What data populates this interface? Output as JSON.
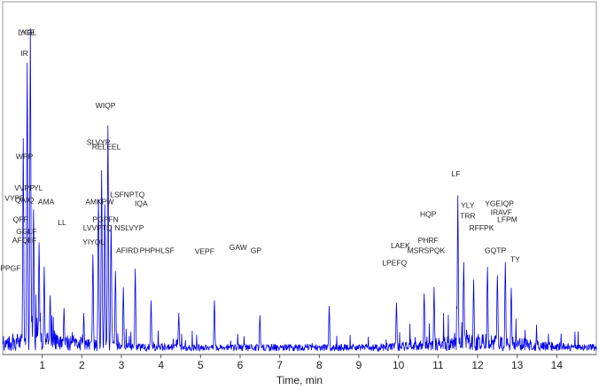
{
  "chart_data": {
    "type": "line",
    "title": "",
    "xlabel": "Time, min",
    "ylabel": "",
    "xlim": [
      0,
      15
    ],
    "ylim": [
      0,
      1
    ],
    "grid": false,
    "x_ticks": [
      "1",
      "2",
      "3",
      "4",
      "5",
      "6",
      "7",
      "8",
      "9",
      "10",
      "11",
      "12",
      "13",
      "14"
    ],
    "series_color": "#0000ee",
    "major_peaks": [
      {
        "x": 0.52,
        "y": 0.62
      },
      {
        "x": 0.62,
        "y": 0.86
      },
      {
        "x": 0.7,
        "y": 0.97
      },
      {
        "x": 0.78,
        "y": 0.44
      },
      {
        "x": 0.92,
        "y": 0.34
      },
      {
        "x": 1.05,
        "y": 0.26
      },
      {
        "x": 1.2,
        "y": 0.18
      },
      {
        "x": 1.55,
        "y": 0.14
      },
      {
        "x": 2.05,
        "y": 0.12
      },
      {
        "x": 2.28,
        "y": 0.3
      },
      {
        "x": 2.42,
        "y": 0.48
      },
      {
        "x": 2.5,
        "y": 0.55
      },
      {
        "x": 2.58,
        "y": 0.45
      },
      {
        "x": 2.66,
        "y": 0.68
      },
      {
        "x": 2.74,
        "y": 0.4
      },
      {
        "x": 2.85,
        "y": 0.25
      },
      {
        "x": 3.05,
        "y": 0.2
      },
      {
        "x": 3.35,
        "y": 0.26
      },
      {
        "x": 3.75,
        "y": 0.16
      },
      {
        "x": 4.45,
        "y": 0.12
      },
      {
        "x": 5.35,
        "y": 0.16
      },
      {
        "x": 6.5,
        "y": 0.12
      },
      {
        "x": 8.25,
        "y": 0.14
      },
      {
        "x": 9.95,
        "y": 0.16
      },
      {
        "x": 10.65,
        "y": 0.19
      },
      {
        "x": 10.9,
        "y": 0.2
      },
      {
        "x": 11.5,
        "y": 0.46
      },
      {
        "x": 11.65,
        "y": 0.28
      },
      {
        "x": 11.9,
        "y": 0.22
      },
      {
        "x": 12.25,
        "y": 0.26
      },
      {
        "x": 12.5,
        "y": 0.24
      },
      {
        "x": 12.7,
        "y": 0.28
      },
      {
        "x": 12.85,
        "y": 0.2
      }
    ],
    "peak_labels": [
      {
        "text": "YGE",
        "x": 0.62,
        "y": 0.915
      },
      {
        "text": "LYGL",
        "x": 0.62,
        "y": 0.915
      },
      {
        "text": "IR",
        "x": 0.55,
        "y": 0.855
      },
      {
        "text": "WIQP",
        "x": 2.6,
        "y": 0.705
      },
      {
        "text": "SLVYP",
        "x": 2.42,
        "y": 0.6
      },
      {
        "text": "RELEEL",
        "x": 2.62,
        "y": 0.587
      },
      {
        "text": "WPP",
        "x": 0.55,
        "y": 0.56
      },
      {
        "text": "VVPP",
        "x": 0.55,
        "y": 0.47
      },
      {
        "text": "YL",
        "x": 0.9,
        "y": 0.47
      },
      {
        "text": "LF",
        "x": 11.45,
        "y": 0.51
      },
      {
        "text": "VYPF",
        "x": 0.3,
        "y": 0.44
      },
      {
        "text": "QAIQ",
        "x": 0.55,
        "y": 0.435
      },
      {
        "text": "AMA",
        "x": 1.1,
        "y": 0.43
      },
      {
        "text": "LSFNPTQ",
        "x": 3.15,
        "y": 0.45
      },
      {
        "text": "AMKPW",
        "x": 2.45,
        "y": 0.43
      },
      {
        "text": "IQA",
        "x": 3.5,
        "y": 0.425
      },
      {
        "text": "YLY",
        "x": 11.75,
        "y": 0.42
      },
      {
        "text": "YGEIQP",
        "x": 12.55,
        "y": 0.425
      },
      {
        "text": "IRAVF",
        "x": 12.6,
        "y": 0.4
      },
      {
        "text": "HQP",
        "x": 10.75,
        "y": 0.395
      },
      {
        "text": "QFF",
        "x": 0.45,
        "y": 0.38
      },
      {
        "text": "LL",
        "x": 1.5,
        "y": 0.37
      },
      {
        "text": "PGPFN",
        "x": 2.6,
        "y": 0.38
      },
      {
        "text": "LVVPTQ",
        "x": 2.4,
        "y": 0.355
      },
      {
        "text": "NSLVYP",
        "x": 3.2,
        "y": 0.355
      },
      {
        "text": "TRR",
        "x": 11.75,
        "y": 0.39
      },
      {
        "text": "LFPM",
        "x": 12.75,
        "y": 0.38
      },
      {
        "text": "RFFPK",
        "x": 12.1,
        "y": 0.355
      },
      {
        "text": "GGLF",
        "x": 0.6,
        "y": 0.345
      },
      {
        "text": "AFQIIF",
        "x": 0.55,
        "y": 0.32
      },
      {
        "text": "YIYQL",
        "x": 2.3,
        "y": 0.315
      },
      {
        "text": "AFIRD",
        "x": 3.15,
        "y": 0.29
      },
      {
        "text": "PHPHLSF",
        "x": 3.9,
        "y": 0.29
      },
      {
        "text": "VEPF",
        "x": 5.1,
        "y": 0.288
      },
      {
        "text": "GAW",
        "x": 5.95,
        "y": 0.3
      },
      {
        "text": "GP",
        "x": 6.4,
        "y": 0.29
      },
      {
        "text": "LAEK",
        "x": 10.05,
        "y": 0.305
      },
      {
        "text": "PHRF",
        "x": 10.75,
        "y": 0.32
      },
      {
        "text": "MSRSPQK",
        "x": 10.7,
        "y": 0.29
      },
      {
        "text": "GQTP",
        "x": 12.45,
        "y": 0.29
      },
      {
        "text": "TY",
        "x": 12.95,
        "y": 0.265
      },
      {
        "text": "PPGF",
        "x": 0.2,
        "y": 0.24
      },
      {
        "text": "LPEFQ",
        "x": 9.9,
        "y": 0.255
      }
    ]
  }
}
